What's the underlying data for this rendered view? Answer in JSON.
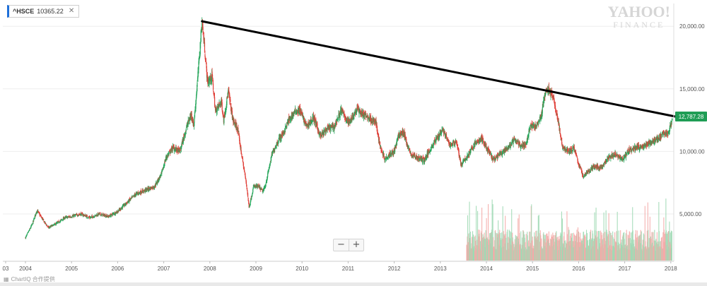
{
  "ticker": {
    "symbol": "^HSCE",
    "value": "10365.22",
    "close_icon": "close-icon",
    "accent_color": "#1e6fd9"
  },
  "watermark": {
    "line1": "YAHOO!",
    "line2": "FINANCE"
  },
  "zoom": {
    "minus_label": "−",
    "plus_label": "+"
  },
  "footer": {
    "text": "ChartIQ 合作提供",
    "icon": "chartiq-icon"
  },
  "colors": {
    "up": "#26a65b",
    "down": "#e0413a",
    "trendline": "#000000",
    "price_badge": "#1f9d55",
    "grid": "#eeeeee"
  },
  "chart_data": {
    "type": "line",
    "title": "",
    "xlabel": "",
    "ylabel": "",
    "x_ticks": [
      "03",
      "2004",
      "2005",
      "2006",
      "2007",
      "2008",
      "2009",
      "2010",
      "2011",
      "2012",
      "2013",
      "2014",
      "2015",
      "2016",
      "2017",
      "2018"
    ],
    "y_ticks": [
      "5,000.00",
      "10,000.00",
      "15,000.00",
      "20,000.00"
    ],
    "ylim": [
      1500,
      22000
    ],
    "xlim": [
      2003.97,
      2018.15
    ],
    "current_price_label": "12,787.28",
    "current_price": 12787.28,
    "series": [
      {
        "values": [
          [
            2004.0,
            3100
          ],
          [
            2004.15,
            4200
          ],
          [
            2004.25,
            5300
          ],
          [
            2004.4,
            4400
          ],
          [
            2004.5,
            3900
          ],
          [
            2004.7,
            4300
          ],
          [
            2004.85,
            4700
          ],
          [
            2005.0,
            4800
          ],
          [
            2005.2,
            5000
          ],
          [
            2005.4,
            4700
          ],
          [
            2005.6,
            5000
          ],
          [
            2005.8,
            4800
          ],
          [
            2006.0,
            5200
          ],
          [
            2006.2,
            5900
          ],
          [
            2006.4,
            6600
          ],
          [
            2006.6,
            6900
          ],
          [
            2006.8,
            7200
          ],
          [
            2006.95,
            8200
          ],
          [
            2007.05,
            9500
          ],
          [
            2007.2,
            10300
          ],
          [
            2007.35,
            10000
          ],
          [
            2007.5,
            12000
          ],
          [
            2007.6,
            13000
          ],
          [
            2007.65,
            12000
          ],
          [
            2007.75,
            16500
          ],
          [
            2007.8,
            19000
          ],
          [
            2007.83,
            20400
          ],
          [
            2007.88,
            18500
          ],
          [
            2007.95,
            15500
          ],
          [
            2008.05,
            16000
          ],
          [
            2008.12,
            13200
          ],
          [
            2008.25,
            14000
          ],
          [
            2008.3,
            12500
          ],
          [
            2008.4,
            14800
          ],
          [
            2008.5,
            12500
          ],
          [
            2008.6,
            11800
          ],
          [
            2008.7,
            9500
          ],
          [
            2008.8,
            7200
          ],
          [
            2008.85,
            5500
          ],
          [
            2008.95,
            7200
          ],
          [
            2009.05,
            7200
          ],
          [
            2009.15,
            6800
          ],
          [
            2009.2,
            7200
          ],
          [
            2009.35,
            9800
          ],
          [
            2009.5,
            11000
          ],
          [
            2009.6,
            11500
          ],
          [
            2009.7,
            12400
          ],
          [
            2009.85,
            13200
          ],
          [
            2009.95,
            13300
          ],
          [
            2010.1,
            12000
          ],
          [
            2010.25,
            12700
          ],
          [
            2010.4,
            11200
          ],
          [
            2010.55,
            11800
          ],
          [
            2010.7,
            12000
          ],
          [
            2010.85,
            13300
          ],
          [
            2011.0,
            12300
          ],
          [
            2011.1,
            12800
          ],
          [
            2011.2,
            13400
          ],
          [
            2011.3,
            13000
          ],
          [
            2011.45,
            12700
          ],
          [
            2011.6,
            12300
          ],
          [
            2011.7,
            10300
          ],
          [
            2011.8,
            9400
          ],
          [
            2011.9,
            9800
          ],
          [
            2012.0,
            10000
          ],
          [
            2012.1,
            11300
          ],
          [
            2012.2,
            11500
          ],
          [
            2012.35,
            9800
          ],
          [
            2012.5,
            9500
          ],
          [
            2012.65,
            9300
          ],
          [
            2012.8,
            10300
          ],
          [
            2012.95,
            11200
          ],
          [
            2013.05,
            11800
          ],
          [
            2013.2,
            10500
          ],
          [
            2013.35,
            10800
          ],
          [
            2013.45,
            8900
          ],
          [
            2013.6,
            9700
          ],
          [
            2013.75,
            10600
          ],
          [
            2013.9,
            11000
          ],
          [
            2014.0,
            10300
          ],
          [
            2014.15,
            9300
          ],
          [
            2014.3,
            9800
          ],
          [
            2014.45,
            10200
          ],
          [
            2014.6,
            10900
          ],
          [
            2014.75,
            10500
          ],
          [
            2014.85,
            10500
          ],
          [
            2014.95,
            12000
          ],
          [
            2015.1,
            12000
          ],
          [
            2015.2,
            13000
          ],
          [
            2015.27,
            14600
          ],
          [
            2015.35,
            15000
          ],
          [
            2015.45,
            14300
          ],
          [
            2015.55,
            12500
          ],
          [
            2015.65,
            10300
          ],
          [
            2015.8,
            10000
          ],
          [
            2015.9,
            10300
          ],
          [
            2016.0,
            9000
          ],
          [
            2016.1,
            8000
          ],
          [
            2016.2,
            8400
          ],
          [
            2016.35,
            8800
          ],
          [
            2016.5,
            8700
          ],
          [
            2016.65,
            9500
          ],
          [
            2016.8,
            9800
          ],
          [
            2016.95,
            9400
          ],
          [
            2017.1,
            10100
          ],
          [
            2017.25,
            10300
          ],
          [
            2017.4,
            10400
          ],
          [
            2017.55,
            10700
          ],
          [
            2017.7,
            11000
          ],
          [
            2017.85,
            11400
          ],
          [
            2017.95,
            11500
          ],
          [
            2018.0,
            12100
          ],
          [
            2018.03,
            12787.28
          ]
        ]
      }
    ],
    "trendline": {
      "from": [
        2007.83,
        20400
      ],
      "to": [
        2018.08,
        12787.28
      ]
    },
    "volume": {
      "start": 2013.57,
      "end": 2018.03,
      "note_max": 100
    }
  }
}
